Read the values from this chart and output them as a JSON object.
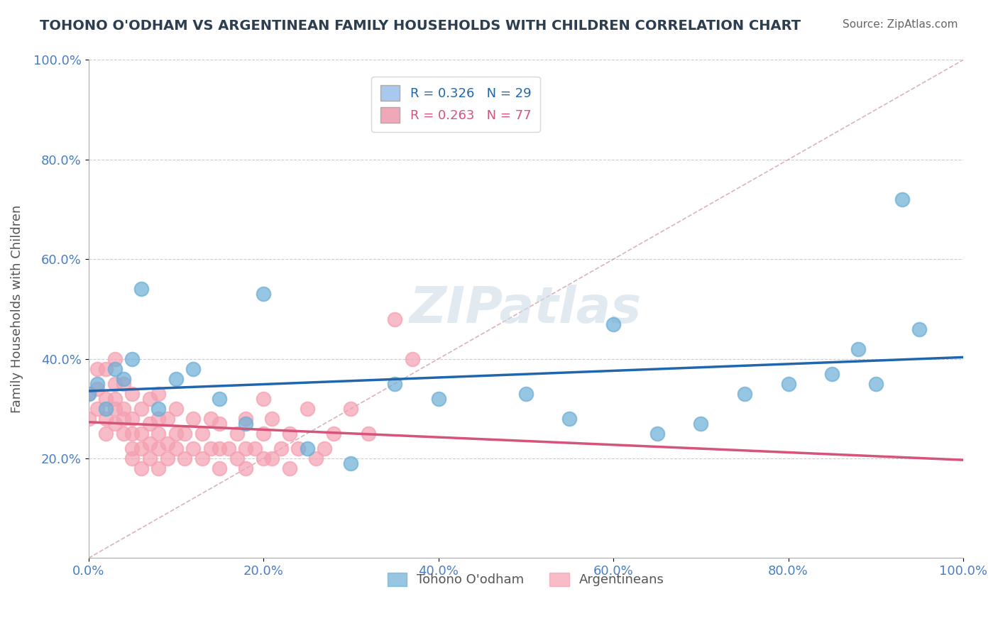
{
  "title": "TOHONO O'ODHAM VS ARGENTINEAN FAMILY HOUSEHOLDS WITH CHILDREN CORRELATION CHART",
  "source_text": "Source: ZipAtlas.com",
  "xlabel": "",
  "ylabel": "Family Households with Children",
  "xlim": [
    0,
    1.0
  ],
  "ylim": [
    0,
    1.0
  ],
  "xtick_labels": [
    "0.0%",
    "20.0%",
    "40.0%",
    "60.0%",
    "80.0%",
    "100.0%"
  ],
  "xtick_vals": [
    0.0,
    0.2,
    0.4,
    0.6,
    0.8,
    1.0
  ],
  "ytick_labels": [
    "20.0%",
    "40.0%",
    "60.0%",
    "80.0%",
    "100.0%"
  ],
  "ytick_vals": [
    0.2,
    0.4,
    0.6,
    0.8,
    1.0
  ],
  "watermark": "ZIPatlas",
  "legend_entries": [
    {
      "label": "R = 0.326   N = 29",
      "color": "#a8c8f0"
    },
    {
      "label": "R = 0.263   N = 77",
      "color": "#f0a8b8"
    }
  ],
  "tohono_x": [
    0.0,
    0.01,
    0.02,
    0.03,
    0.04,
    0.05,
    0.06,
    0.08,
    0.1,
    0.12,
    0.15,
    0.18,
    0.2,
    0.25,
    0.3,
    0.35,
    0.4,
    0.5,
    0.55,
    0.6,
    0.65,
    0.7,
    0.75,
    0.8,
    0.85,
    0.88,
    0.9,
    0.93,
    0.95
  ],
  "tohono_y": [
    0.33,
    0.35,
    0.3,
    0.38,
    0.36,
    0.4,
    0.54,
    0.3,
    0.36,
    0.38,
    0.32,
    0.27,
    0.53,
    0.22,
    0.19,
    0.35,
    0.32,
    0.33,
    0.28,
    0.47,
    0.25,
    0.27,
    0.33,
    0.35,
    0.37,
    0.42,
    0.35,
    0.72,
    0.46
  ],
  "argentinean_x": [
    0.0,
    0.0,
    0.01,
    0.01,
    0.01,
    0.02,
    0.02,
    0.02,
    0.02,
    0.03,
    0.03,
    0.03,
    0.03,
    0.03,
    0.04,
    0.04,
    0.04,
    0.04,
    0.05,
    0.05,
    0.05,
    0.05,
    0.05,
    0.06,
    0.06,
    0.06,
    0.06,
    0.07,
    0.07,
    0.07,
    0.07,
    0.08,
    0.08,
    0.08,
    0.08,
    0.08,
    0.09,
    0.09,
    0.09,
    0.1,
    0.1,
    0.1,
    0.11,
    0.11,
    0.12,
    0.12,
    0.13,
    0.13,
    0.14,
    0.14,
    0.15,
    0.15,
    0.15,
    0.16,
    0.17,
    0.17,
    0.18,
    0.18,
    0.18,
    0.19,
    0.2,
    0.2,
    0.2,
    0.21,
    0.21,
    0.22,
    0.23,
    0.23,
    0.24,
    0.25,
    0.26,
    0.27,
    0.28,
    0.3,
    0.32,
    0.35,
    0.37
  ],
  "argentinean_y": [
    0.28,
    0.33,
    0.3,
    0.34,
    0.38,
    0.25,
    0.28,
    0.32,
    0.38,
    0.27,
    0.3,
    0.32,
    0.35,
    0.4,
    0.25,
    0.28,
    0.3,
    0.35,
    0.2,
    0.22,
    0.25,
    0.28,
    0.33,
    0.18,
    0.22,
    0.25,
    0.3,
    0.2,
    0.23,
    0.27,
    0.32,
    0.18,
    0.22,
    0.25,
    0.28,
    0.33,
    0.2,
    0.23,
    0.28,
    0.22,
    0.25,
    0.3,
    0.2,
    0.25,
    0.22,
    0.28,
    0.2,
    0.25,
    0.22,
    0.28,
    0.18,
    0.22,
    0.27,
    0.22,
    0.2,
    0.25,
    0.18,
    0.22,
    0.28,
    0.22,
    0.2,
    0.25,
    0.32,
    0.2,
    0.28,
    0.22,
    0.18,
    0.25,
    0.22,
    0.3,
    0.2,
    0.22,
    0.25,
    0.3,
    0.25,
    0.48,
    0.4
  ],
  "tohono_color": "#6baed6",
  "argentinean_color": "#f4a0b0",
  "tohono_line_color": "#2166ac",
  "argentinean_line_color": "#d6537a",
  "diagonal_color": "#d4a0a8",
  "grid_color": "#cccccc",
  "background_color": "#ffffff",
  "title_color": "#2c3e50",
  "source_color": "#666666"
}
